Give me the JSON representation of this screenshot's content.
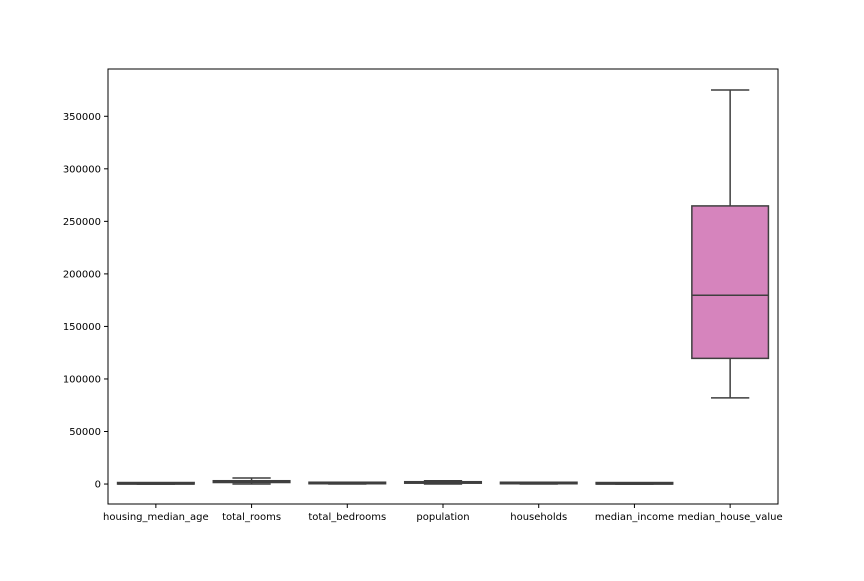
{
  "chart_data": {
    "type": "box",
    "title": "",
    "xlabel": "",
    "ylabel": "",
    "ylim": [
      -19000,
      395000
    ],
    "yticks": [
      0,
      50000,
      100000,
      150000,
      200000,
      250000,
      300000,
      350000
    ],
    "ytick_labels": [
      "0",
      "50000",
      "100000",
      "150000",
      "200000",
      "250000",
      "300000",
      "350000"
    ],
    "grid": false,
    "legend": "none",
    "categories": [
      "housing_median_age",
      "total_rooms",
      "total_bedrooms",
      "population",
      "households",
      "median_income",
      "median_house_value"
    ],
    "boxes": [
      {
        "category": "housing_median_age",
        "whisker_low": 1,
        "q1": 18,
        "median": 29,
        "q3": 37,
        "whisker_high": 52,
        "color": "#3274a1"
      },
      {
        "category": "total_rooms",
        "whisker_low": 2,
        "q1": 1450,
        "median": 2130,
        "q3": 3150,
        "whisker_high": 5700,
        "color": "#e1812c"
      },
      {
        "category": "total_bedrooms",
        "whisker_low": 1,
        "q1": 297,
        "median": 435,
        "q3": 647,
        "whisker_high": 1170,
        "color": "#3a923a"
      },
      {
        "category": "population",
        "whisker_low": 3,
        "q1": 790,
        "median": 1167,
        "q3": 1725,
        "whisker_high": 3130,
        "color": "#c03d3e"
      },
      {
        "category": "households",
        "whisker_low": 1,
        "q1": 280,
        "median": 409,
        "q3": 605,
        "whisker_high": 1090,
        "color": "#9372b2"
      },
      {
        "category": "median_income",
        "whisker_low": 0.5,
        "q1": 2.6,
        "median": 3.5,
        "q3": 4.7,
        "whisker_high": 8,
        "color": "#845b53"
      },
      {
        "category": "median_house_value",
        "whisker_low": 82000,
        "q1": 119600,
        "median": 179700,
        "q3": 264700,
        "whisker_high": 375000,
        "color": "#d684bd"
      }
    ]
  }
}
